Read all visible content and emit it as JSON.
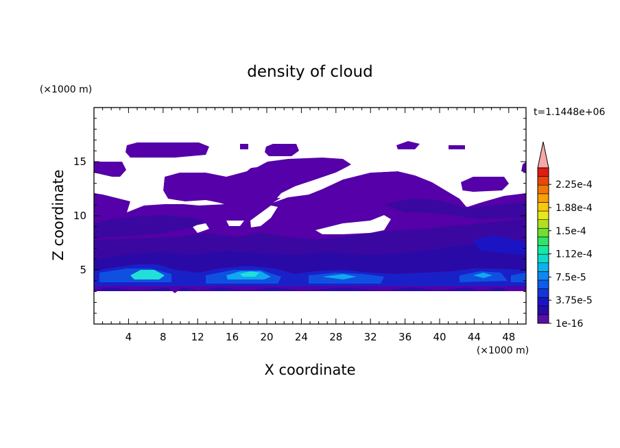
{
  "chart_data": {
    "type": "heatmap",
    "title": "density of cloud",
    "xlabel": "X coordinate",
    "ylabel": "Z coordinate",
    "x_unit": "(×1000 m)",
    "y_unit": "(×1000 m)",
    "time_label": "t=1.1448e+06",
    "xlim": [
      0,
      50
    ],
    "ylim": [
      0,
      20
    ],
    "x_ticks": [
      "4",
      "8",
      "12",
      "16",
      "20",
      "24",
      "28",
      "32",
      "36",
      "40",
      "44",
      "48"
    ],
    "y_ticks": [
      "5",
      "10",
      "15"
    ],
    "colorbar": {
      "labels": [
        "1e-16",
        "3.75e-5",
        "7.5e-5",
        "1.12e-4",
        "1.5e-4",
        "1.88e-4",
        "2.25e-4"
      ],
      "colors": [
        "#5a0fa8",
        "#2a0aa6",
        "#1a14c4",
        "#1236d8",
        "#0f5cea",
        "#0c88f2",
        "#08b4ec",
        "#10d8cc",
        "#18e8a0",
        "#30e468",
        "#70e030",
        "#b0e020",
        "#e8e818",
        "#f8c810",
        "#f8a008",
        "#f07808",
        "#e84808",
        "#e01c10",
        "#f8a8a8"
      ],
      "overflow_arrow": "#f8a8a8"
    },
    "colors": {
      "base_cloud": "#5500a8",
      "mid_cloud": "#3a08a0",
      "dense_layer": "#1a20c8",
      "peak": "#20e0d8"
    }
  }
}
